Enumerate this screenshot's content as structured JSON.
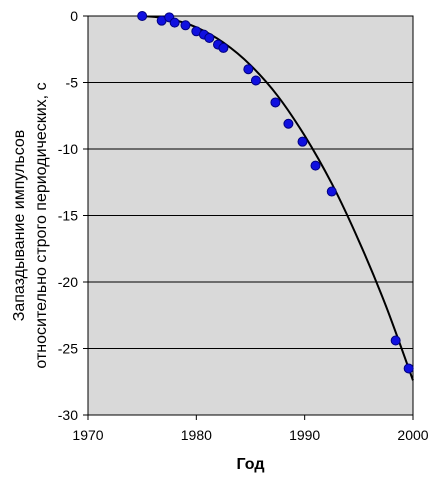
{
  "chart_data": {
    "type": "scatter",
    "title": "",
    "xlabel": "Год",
    "ylabel_lines": [
      "Запаздывание импульсов",
      "относительно строго периодических, с"
    ],
    "xlim": [
      1970,
      2000
    ],
    "ylim": [
      -30,
      0
    ],
    "x_ticks": [
      1970,
      1980,
      1990,
      2000
    ],
    "y_ticks": [
      0,
      -5,
      -10,
      -15,
      -20,
      -25,
      -30
    ],
    "grid": "horizontal",
    "plot_background": "#d9d9d9",
    "marker_color": "#1010e0",
    "curve_color": "#000000",
    "series": [
      {
        "type": "scatter",
        "x": [
          1975.0,
          1976.8,
          1977.5,
          1978.0,
          1979.0,
          1980.0,
          1980.7,
          1981.2,
          1982.0,
          1982.5,
          1984.8,
          1985.5,
          1987.3,
          1988.5,
          1989.8,
          1991.0,
          1992.5,
          1998.4,
          1999.6
        ],
        "y": [
          0.0,
          -0.35,
          -0.1,
          -0.5,
          -0.7,
          -1.15,
          -1.4,
          -1.65,
          -2.15,
          -2.4,
          -4.0,
          -4.85,
          -6.5,
          -8.1,
          -9.45,
          -11.25,
          -13.2,
          -24.4,
          -26.5
        ]
      },
      {
        "type": "line",
        "x": [
          1975,
          1977.5,
          1980,
          1982.5,
          1985,
          1987.5,
          1990,
          1992.5,
          1995,
          1997.5,
          2000
        ],
        "y": [
          0.0,
          -0.22,
          -0.85,
          -2.0,
          -3.7,
          -6.0,
          -9.0,
          -12.6,
          -16.9,
          -21.8,
          -27.4
        ]
      }
    ]
  }
}
